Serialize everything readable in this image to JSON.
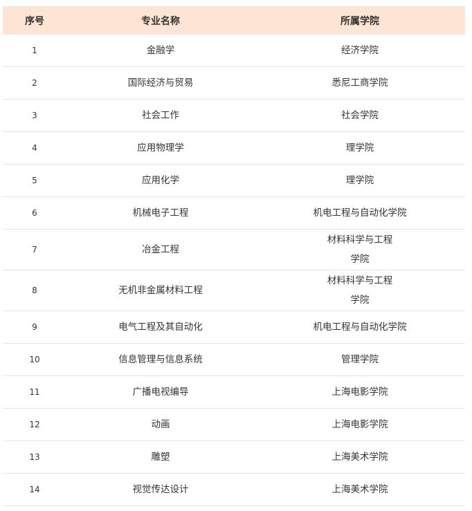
{
  "header": {
    "index": "序号",
    "major": "专业名称",
    "college": "所属学院"
  },
  "header_bg": "#fde4d4",
  "rows": [
    {
      "index": "1",
      "major": "金融学",
      "college": "经济学院"
    },
    {
      "index": "2",
      "major": "国际经济与贸易",
      "college": "悉尼工商学院"
    },
    {
      "index": "3",
      "major": "社会工作",
      "college": "社会学院"
    },
    {
      "index": "4",
      "major": "应用物理学",
      "college": "理学院"
    },
    {
      "index": "5",
      "major": "应用化学",
      "college": "理学院"
    },
    {
      "index": "6",
      "major": "机械电子工程",
      "college": "机电工程与自动化学院"
    },
    {
      "index": "7",
      "major": "冶金工程",
      "college": "材料科学与工程\n学院"
    },
    {
      "index": "8",
      "major": "无机非金属材料工程",
      "college": "材料科学与工程\n学院"
    },
    {
      "index": "9",
      "major": "电气工程及其自动化",
      "college": "机电工程与自动化学院"
    },
    {
      "index": "10",
      "major": "信息管理与信息系统",
      "college": "管理学院"
    },
    {
      "index": "11",
      "major": "广播电视编导",
      "college": "上海电影学院"
    },
    {
      "index": "12",
      "major": "动画",
      "college": "上海电影学院"
    },
    {
      "index": "13",
      "major": "雕塑",
      "college": "上海美术学院"
    },
    {
      "index": "14",
      "major": "视觉传达设计",
      "college": "上海美术学院"
    }
  ]
}
